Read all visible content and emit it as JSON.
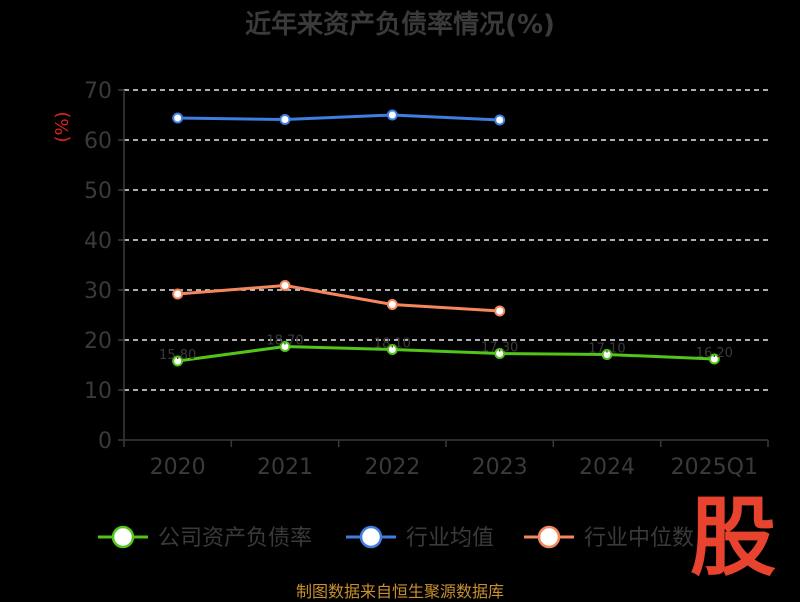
{
  "chart_data": {
    "type": "line",
    "title": "近年来资产负债率情况(%)",
    "ylabel": "(%)",
    "categories": [
      "2020",
      "2021",
      "2022",
      "2023",
      "2024",
      "2025Q1"
    ],
    "yticks": [
      "0",
      "10",
      "20",
      "30",
      "40",
      "50",
      "60",
      "70"
    ],
    "ylim": [
      0,
      70
    ],
    "grid": true,
    "legend_position": "bottom",
    "series": [
      {
        "name": "公司资产负债率",
        "color": "#52c41a",
        "values": [
          15.8,
          18.7,
          18.1,
          17.3,
          17.1,
          16.2
        ]
      },
      {
        "name": "行业均值",
        "color": "#3f7de0",
        "values": [
          64.4,
          64.1,
          65.0,
          64.0,
          null,
          null
        ]
      },
      {
        "name": "行业中位数",
        "color": "#f4875b",
        "values": [
          29.2,
          30.9,
          27.1,
          25.8,
          null,
          null
        ]
      }
    ]
  },
  "source_note": "制图数据来自恒生聚源数据库",
  "watermark": "股"
}
